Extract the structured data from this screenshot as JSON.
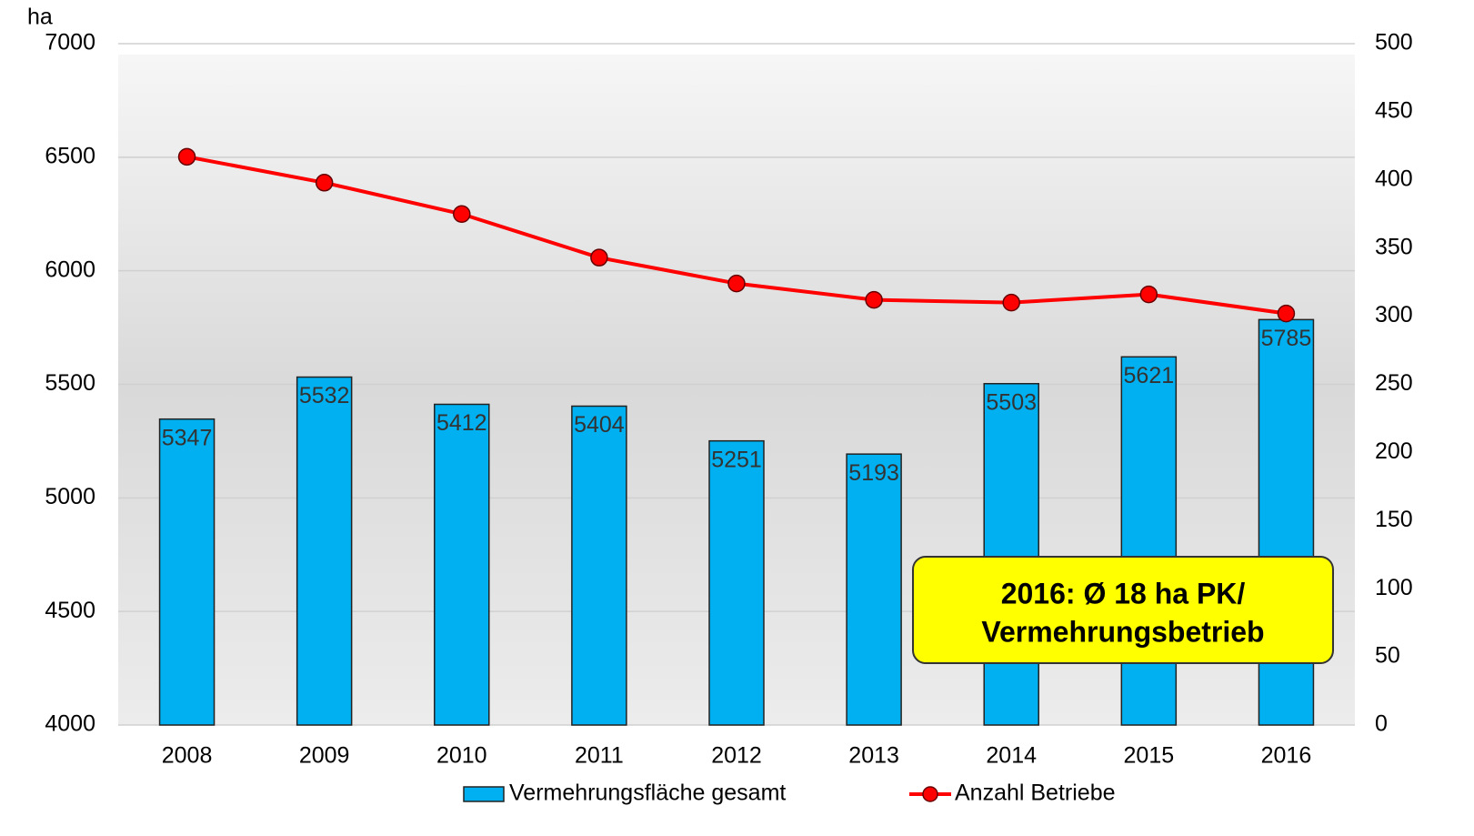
{
  "chart_data": {
    "type": "bar",
    "y_label": "ha",
    "categories": [
      "2008",
      "2009",
      "2010",
      "2011",
      "2012",
      "2013",
      "2014",
      "2015",
      "2016"
    ],
    "series": [
      {
        "name": "Vermehrungsfläche gesamt",
        "type": "bar",
        "color": "#00b0f0",
        "axis": "y",
        "values": [
          5347,
          5532,
          5412,
          5404,
          5251,
          5193,
          5503,
          5621,
          5785
        ]
      },
      {
        "name": "Anzahl Betriebe",
        "type": "line",
        "color": "#ff0000",
        "axis": "y2",
        "values": [
          417,
          398,
          375,
          343,
          324,
          312,
          310,
          316,
          302
        ]
      }
    ],
    "ylim": [
      4000,
      7000
    ],
    "yticks": [
      4000,
      4500,
      5000,
      5500,
      6000,
      6500,
      7000
    ],
    "y2lim": [
      0,
      500
    ],
    "y2ticks": [
      0,
      50,
      100,
      150,
      200,
      250,
      300,
      350,
      400,
      450,
      500
    ],
    "grid": true,
    "legend": "bottom",
    "annotations": [
      "2016: Ø 18 ha PK/",
      "Vermehrungsbetrieb"
    ]
  }
}
